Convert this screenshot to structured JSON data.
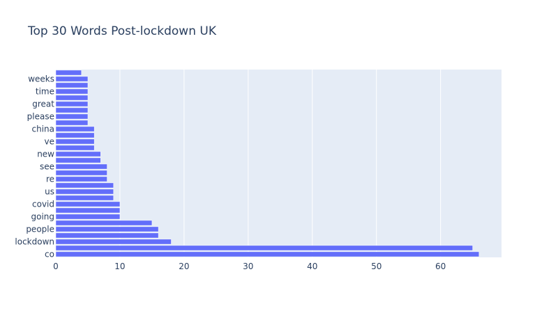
{
  "chart_data": {
    "type": "bar",
    "orientation": "horizontal",
    "title": "Top 30 Words Post-lockdown UK",
    "xlabel": "",
    "ylabel": "",
    "xlim": [
      0,
      69.5
    ],
    "xticks": [
      0,
      10,
      20,
      30,
      40,
      50,
      60
    ],
    "grid": true,
    "legend": "none",
    "colors": {
      "bar": "#636efa",
      "plot_bg": "#e5ecf6",
      "grid": "#ffffff",
      "text": "#2a3f5f"
    },
    "categories": [
      "co",
      "",
      "lockdown",
      "",
      "people",
      "",
      "going",
      "",
      "covid",
      "",
      "us",
      "",
      "re",
      "",
      "see",
      "",
      "new",
      "",
      "ve",
      "",
      "china",
      "",
      "please",
      "",
      "great",
      "",
      "time",
      "",
      "weeks",
      ""
    ],
    "values": [
      66,
      65,
      18,
      16,
      16,
      15,
      10,
      10,
      10,
      9,
      9,
      9,
      8,
      8,
      8,
      7,
      7,
      6,
      6,
      6,
      6,
      5,
      5,
      5,
      5,
      5,
      5,
      5,
      5,
      4
    ]
  }
}
